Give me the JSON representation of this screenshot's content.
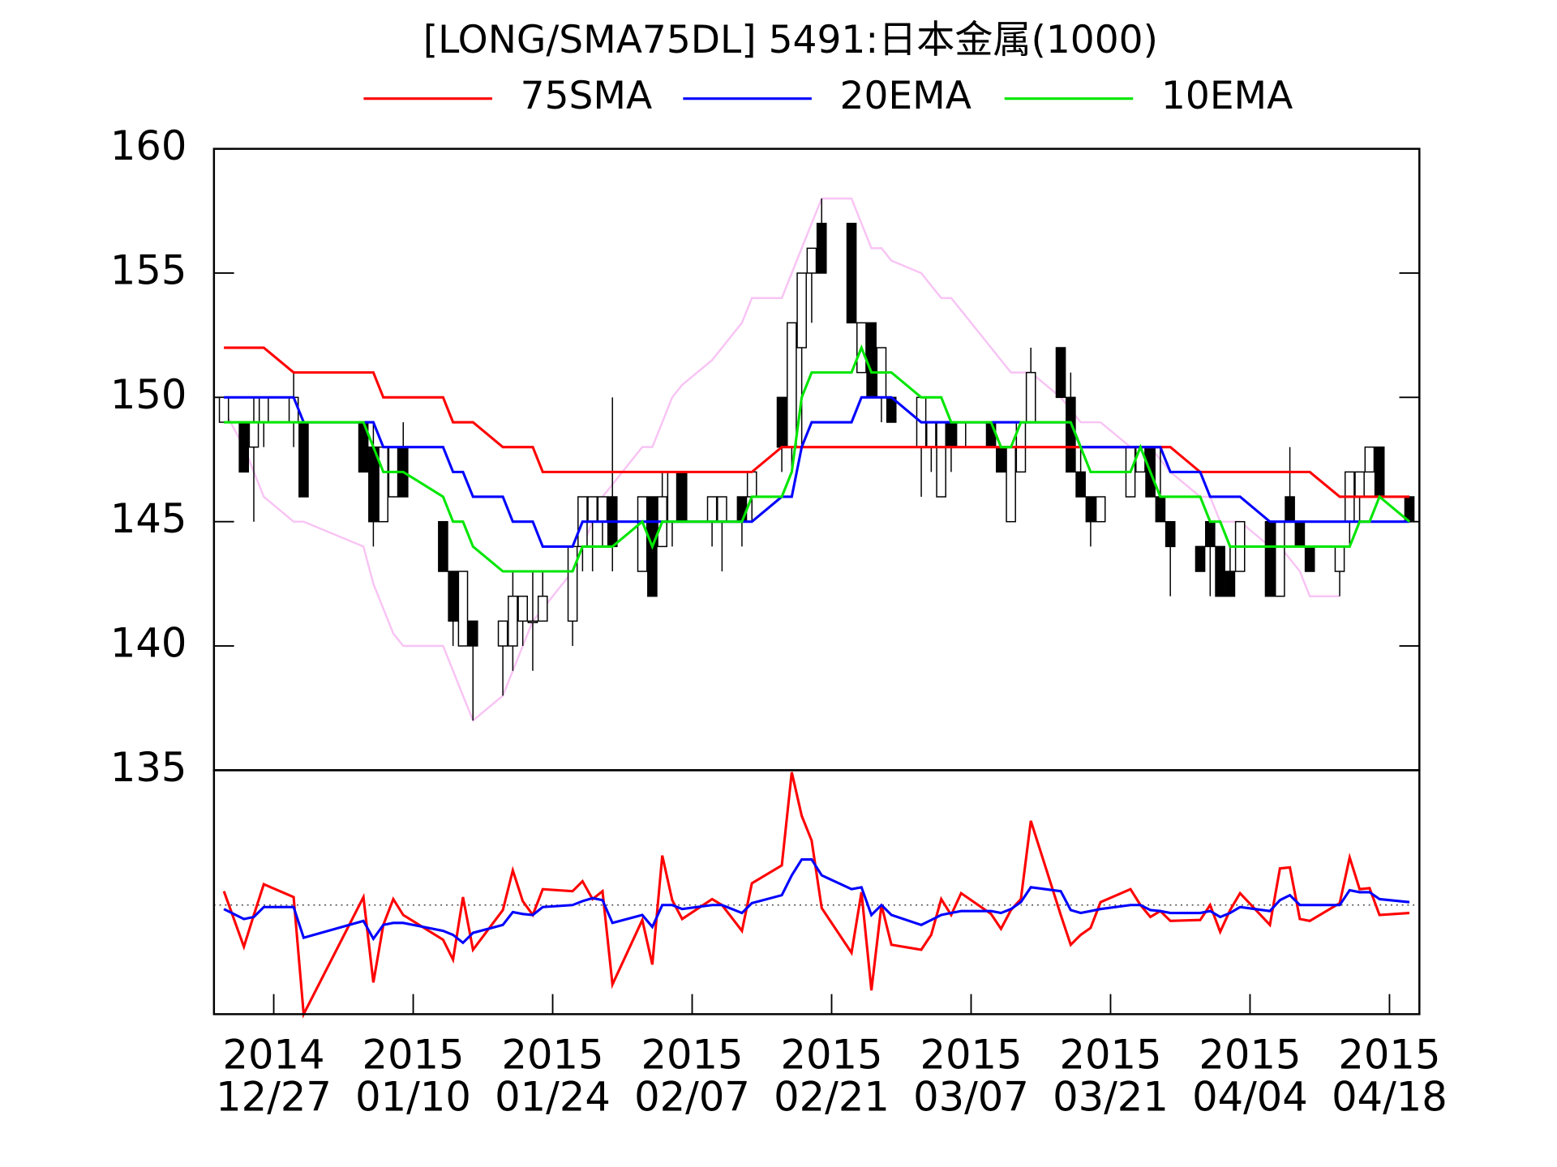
{
  "chart_data": [
    {
      "type": "candlestick",
      "title": "[LONG/SMA75DL] 5491:日本金属(1000)",
      "x": [
        "2014-12-22",
        "2014-12-24",
        "2014-12-25",
        "2014-12-26",
        "2014-12-29",
        "2014-12-30",
        "2015-01-05",
        "2015-01-06",
        "2015-01-07",
        "2015-01-08",
        "2015-01-09",
        "2015-01-13",
        "2015-01-14",
        "2015-01-15",
        "2015-01-16",
        "2015-01-19",
        "2015-01-20",
        "2015-01-21",
        "2015-01-22",
        "2015-01-23",
        "2015-01-26",
        "2015-01-27",
        "2015-01-28",
        "2015-01-29",
        "2015-01-30",
        "2015-02-02",
        "2015-02-03",
        "2015-02-04",
        "2015-02-05",
        "2015-02-06",
        "2015-02-09",
        "2015-02-10",
        "2015-02-12",
        "2015-02-13",
        "2015-02-16",
        "2015-02-17",
        "2015-02-18",
        "2015-02-19",
        "2015-02-20",
        "2015-02-23",
        "2015-02-24",
        "2015-02-25",
        "2015-02-26",
        "2015-02-27",
        "2015-03-02",
        "2015-03-03",
        "2015-03-04",
        "2015-03-05",
        "2015-03-06",
        "2015-03-09",
        "2015-03-10",
        "2015-03-11",
        "2015-03-12",
        "2015-03-13",
        "2015-03-16",
        "2015-03-17",
        "2015-03-18",
        "2015-03-19",
        "2015-03-20",
        "2015-03-23",
        "2015-03-24",
        "2015-03-25",
        "2015-03-26",
        "2015-03-27",
        "2015-03-30",
        "2015-03-31",
        "2015-04-01",
        "2015-04-02",
        "2015-04-03",
        "2015-04-06",
        "2015-04-07",
        "2015-04-08",
        "2015-04-09",
        "2015-04-10",
        "2015-04-13",
        "2015-04-14",
        "2015-04-15",
        "2015-04-16",
        "2015-04-17",
        "2015-04-20"
      ],
      "open": [
        149,
        149,
        148,
        149,
        149,
        149,
        149,
        148,
        145,
        146,
        148,
        145,
        143,
        140,
        141,
        140,
        140,
        141,
        141,
        141,
        141,
        144,
        145,
        145,
        146,
        143,
        146,
        144,
        145,
        147,
        145,
        145,
        146,
        146,
        150,
        148,
        152,
        155,
        157,
        157,
        151,
        153,
        150,
        150,
        148,
        148,
        146,
        149,
        148,
        149,
        148,
        145,
        147,
        149,
        152,
        150,
        147,
        146,
        145,
        146,
        147,
        148,
        146,
        145,
        144,
        145,
        144,
        143,
        143,
        145,
        142,
        146,
        145,
        144,
        143,
        145,
        146,
        147,
        148,
        146
      ],
      "high": [
        150,
        149,
        150,
        150,
        151,
        149,
        149,
        149,
        148,
        148,
        149,
        145,
        143,
        143,
        141,
        141,
        143,
        142,
        143,
        143,
        144,
        146,
        146,
        146,
        150,
        146,
        146,
        147,
        147,
        147,
        146,
        146,
        146,
        147,
        150,
        153,
        155,
        156,
        158,
        157,
        153,
        153,
        152,
        150,
        150,
        149,
        149,
        149,
        149,
        149,
        148,
        148,
        149,
        152,
        152,
        151,
        148,
        146,
        146,
        148,
        148,
        148,
        148,
        145,
        144,
        145,
        144,
        144,
        145,
        145,
        145,
        148,
        145,
        144,
        144,
        147,
        147,
        148,
        148,
        146
      ],
      "low": [
        149,
        147,
        145,
        148,
        148,
        146,
        147,
        144,
        145,
        146,
        146,
        143,
        140,
        140,
        137,
        138,
        139,
        140,
        139,
        141,
        140,
        143,
        143,
        144,
        143,
        143,
        142,
        144,
        144,
        145,
        144,
        143,
        144,
        145,
        147,
        147,
        148,
        153,
        155,
        153,
        151,
        150,
        149,
        149,
        146,
        147,
        146,
        147,
        148,
        148,
        147,
        145,
        147,
        149,
        150,
        147,
        146,
        144,
        145,
        146,
        147,
        146,
        145,
        142,
        143,
        142,
        142,
        142,
        143,
        142,
        142,
        145,
        144,
        143,
        142,
        144,
        145,
        147,
        146,
        145
      ],
      "close": [
        150,
        147,
        149,
        150,
        150,
        146,
        147,
        145,
        148,
        148,
        146,
        143,
        141,
        143,
        140,
        141,
        142,
        142,
        141,
        142,
        144,
        146,
        146,
        146,
        144,
        146,
        142,
        146,
        147,
        145,
        146,
        146,
        145,
        147,
        148,
        153,
        155,
        156,
        155,
        153,
        153,
        150,
        152,
        149,
        150,
        149,
        149,
        148,
        149,
        148,
        147,
        148,
        149,
        151,
        150,
        147,
        146,
        145,
        146,
        148,
        148,
        146,
        145,
        144,
        143,
        144,
        142,
        142,
        145,
        142,
        145,
        145,
        144,
        143,
        144,
        147,
        147,
        148,
        146,
        145
      ],
      "series": [
        {
          "name": "75SMA",
          "color": "#ff0000",
          "values": [
            152,
            152,
            152,
            152,
            151,
            151,
            151,
            151,
            150,
            150,
            150,
            150,
            149,
            149,
            149,
            148,
            148,
            148,
            148,
            147,
            147,
            147,
            147,
            147,
            147,
            147,
            147,
            147,
            147,
            147,
            147,
            147,
            147,
            147,
            148,
            148,
            148,
            148,
            148,
            148,
            148,
            148,
            148,
            148,
            148,
            148,
            148,
            148,
            148,
            148,
            148,
            148,
            148,
            148,
            148,
            148,
            148,
            148,
            148,
            148,
            148,
            148,
            148,
            148,
            147,
            147,
            147,
            147,
            147,
            147,
            147,
            147,
            147,
            147,
            146,
            146,
            146,
            146,
            146,
            146
          ]
        },
        {
          "name": "20EMA",
          "color": "#0000ff",
          "values": [
            150,
            150,
            150,
            150,
            150,
            149,
            149,
            149,
            148,
            148,
            148,
            148,
            147,
            147,
            146,
            146,
            145,
            145,
            145,
            144,
            144,
            145,
            145,
            145,
            145,
            145,
            145,
            145,
            145,
            145,
            145,
            145,
            145,
            145,
            146,
            146,
            148,
            149,
            149,
            149,
            150,
            150,
            150,
            150,
            149,
            149,
            149,
            149,
            149,
            149,
            149,
            149,
            149,
            149,
            149,
            149,
            148,
            148,
            148,
            148,
            148,
            148,
            148,
            147,
            147,
            146,
            146,
            146,
            146,
            145,
            145,
            145,
            145,
            145,
            145,
            145,
            145,
            145,
            145,
            145
          ]
        },
        {
          "name": "10EMA",
          "color": "#00e600",
          "values": [
            149,
            149,
            149,
            149,
            149,
            149,
            149,
            148,
            147,
            147,
            147,
            146,
            145,
            145,
            144,
            143,
            143,
            143,
            143,
            143,
            143,
            144,
            144,
            144,
            144,
            145,
            144,
            145,
            145,
            145,
            145,
            145,
            145,
            146,
            146,
            147,
            150,
            151,
            151,
            151,
            152,
            151,
            151,
            151,
            150,
            150,
            150,
            149,
            149,
            149,
            148,
            148,
            149,
            149,
            149,
            149,
            148,
            147,
            147,
            147,
            148,
            147,
            146,
            146,
            146,
            145,
            145,
            144,
            144,
            144,
            144,
            144,
            144,
            144,
            144,
            144,
            145,
            145,
            146,
            145
          ]
        },
        {
          "color": "#f8c4f4",
          "values": [
            149.5,
            148,
            147,
            146,
            145,
            145,
            144,
            142.5,
            141.5,
            140.5,
            140,
            140,
            139,
            138,
            137,
            138,
            139,
            140,
            141,
            141.5,
            143,
            144,
            145,
            146,
            146.5,
            148,
            148,
            149,
            150,
            150.5,
            151.5,
            152,
            153,
            154,
            154,
            155,
            156,
            157,
            158,
            158,
            157,
            156,
            156,
            155.5,
            155,
            154.5,
            154,
            154,
            153.5,
            152,
            151.5,
            151,
            151,
            151,
            150,
            149.5,
            149,
            149,
            149,
            148,
            148,
            148,
            147.5,
            147,
            146,
            146,
            145,
            145,
            145,
            144,
            144,
            143.5,
            143,
            142,
            142,
            null,
            null,
            null,
            null,
            null
          ]
        }
      ],
      "xlim": [
        "2014-12-21",
        "2015-04-21"
      ],
      "ylim": [
        135,
        160
      ],
      "yticks": [
        135,
        140,
        145,
        150,
        155,
        160
      ]
    },
    {
      "type": "line",
      "x": [
        "2014-12-22",
        "2014-12-24",
        "2014-12-25",
        "2014-12-26",
        "2014-12-29",
        "2014-12-30",
        "2015-01-05",
        "2015-01-06",
        "2015-01-07",
        "2015-01-08",
        "2015-01-09",
        "2015-01-13",
        "2015-01-14",
        "2015-01-15",
        "2015-01-16",
        "2015-01-19",
        "2015-01-20",
        "2015-01-21",
        "2015-01-22",
        "2015-01-23",
        "2015-01-26",
        "2015-01-27",
        "2015-01-28",
        "2015-01-29",
        "2015-01-30",
        "2015-02-02",
        "2015-02-03",
        "2015-02-04",
        "2015-02-05",
        "2015-02-06",
        "2015-02-09",
        "2015-02-10",
        "2015-02-12",
        "2015-02-13",
        "2015-02-16",
        "2015-02-17",
        "2015-02-18",
        "2015-02-19",
        "2015-02-20",
        "2015-02-23",
        "2015-02-24",
        "2015-02-25",
        "2015-02-26",
        "2015-02-27",
        "2015-03-02",
        "2015-03-03",
        "2015-03-04",
        "2015-03-05",
        "2015-03-06",
        "2015-03-09",
        "2015-03-10",
        "2015-03-11",
        "2015-03-12",
        "2015-03-13",
        "2015-03-16",
        "2015-03-17",
        "2015-03-18",
        "2015-03-19",
        "2015-03-20",
        "2015-03-23",
        "2015-03-24",
        "2015-03-25",
        "2015-03-26",
        "2015-03-27",
        "2015-03-30",
        "2015-03-31",
        "2015-04-01",
        "2015-04-02",
        "2015-04-03",
        "2015-04-06",
        "2015-04-07",
        "2015-04-08",
        "2015-04-09",
        "2015-04-10",
        "2015-04-13",
        "2015-04-14",
        "2015-04-15",
        "2015-04-16",
        "2015-04-17",
        "2015-04-20"
      ],
      "series": [
        {
          "color": "#ff0000",
          "values": [
            1.4,
            -4.2,
            -1,
            2.1,
            0.8,
            -11,
            0.8,
            -7.8,
            -2,
            0.6,
            -1,
            -3.5,
            -5.5,
            0.8,
            -4.5,
            -0.5,
            3.5,
            0.4,
            -1,
            1.6,
            1.4,
            2.4,
            0.6,
            1.4,
            -8,
            -1.5,
            -6,
            5,
            0.5,
            -1.4,
            0.6,
            0,
            -2.6,
            2.2,
            4,
            13.4,
            9,
            6.5,
            -0.3,
            -4.8,
            1.3,
            -8.6,
            0,
            -4,
            -4.5,
            -3,
            0.6,
            -1,
            1.2,
            -0.9,
            -2.4,
            -0.5,
            0.6,
            8.5,
            -1,
            -4,
            -3,
            -2.3,
            0.3,
            1.6,
            0,
            -1.2,
            -0.6,
            -1.6,
            -1.5,
            0,
            -2.7,
            -0.5,
            1.2,
            -2,
            3.7,
            3.8,
            -1.4,
            -1.6,
            0.2,
            4.8,
            1.6,
            1.7,
            -1,
            -0.8
          ]
        },
        {
          "color": "#0000ff",
          "values": [
            -0.4,
            -1.4,
            -1.2,
            -0.2,
            -0.2,
            -3.3,
            -1.6,
            -3.4,
            -2,
            -1.8,
            -1.8,
            -2.6,
            -3,
            -3.8,
            -2.8,
            -2,
            -0.7,
            -0.9,
            -1,
            -0.2,
            0,
            0.4,
            0.7,
            0.5,
            -1.8,
            -1,
            -2.2,
            0,
            0,
            -0.4,
            0,
            0,
            -0.8,
            0.2,
            1,
            3,
            4.6,
            4.6,
            3,
            1.6,
            1.8,
            -1,
            0,
            -1,
            -2,
            -1.5,
            -1,
            -0.8,
            -0.6,
            -0.6,
            -0.8,
            -0.4,
            0.3,
            1.8,
            1.4,
            -0.5,
            -0.8,
            -0.6,
            -0.4,
            0,
            0,
            -0.5,
            -0.6,
            -0.8,
            -0.8,
            -0.6,
            -1.2,
            -0.8,
            -0.2,
            -0.6,
            0.5,
            1,
            0,
            0,
            0,
            1.5,
            1.3,
            1.3,
            0.6,
            0.3
          ]
        }
      ],
      "reference_line": 0,
      "xlim": [
        "2014-12-21",
        "2015-04-21"
      ],
      "ylim": [
        -11,
        13.6
      ],
      "xticks": [
        {
          "value": "2014-12-27",
          "label": "2014\n12/27"
        },
        {
          "value": "2015-01-10",
          "label": "2015\n01/10"
        },
        {
          "value": "2015-01-24",
          "label": "2015\n01/24"
        },
        {
          "value": "2015-02-07",
          "label": "2015\n02/07"
        },
        {
          "value": "2015-02-21",
          "label": "2015\n02/21"
        },
        {
          "value": "2015-03-07",
          "label": "2015\n03/07"
        },
        {
          "value": "2015-03-21",
          "label": "2015\n03/21"
        },
        {
          "value": "2015-04-04",
          "label": "2015\n04/04"
        },
        {
          "value": "2015-04-18",
          "label": "2015\n04/18"
        }
      ]
    }
  ]
}
